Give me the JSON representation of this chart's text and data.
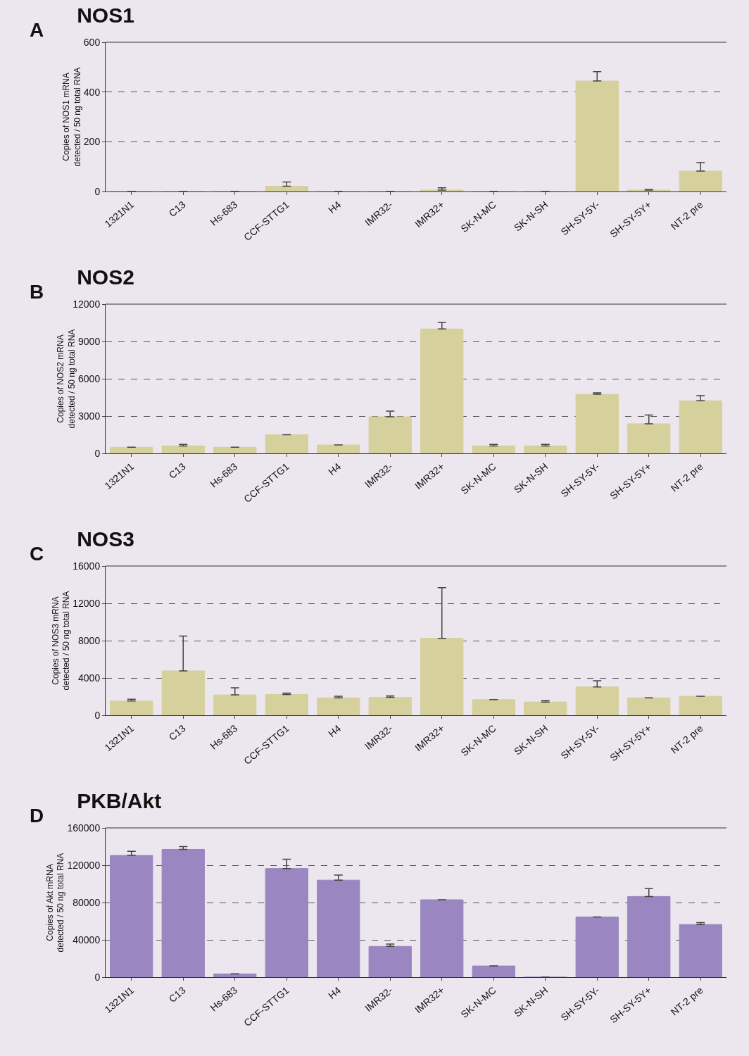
{
  "chart_data": [
    {
      "type": "bar",
      "title": "NOS1",
      "annotations": [
        "A"
      ],
      "ylabel": "Copies of NOS1 mRNA\ndetected / 50 ng total RNA",
      "categories": [
        "1321N1",
        "C13",
        "Hs-683",
        "CCF-STTG1",
        "H4",
        "IMR32-",
        "IMR32+",
        "SK-N-MC",
        "SK-N-SH",
        "SH-SY-5Y-",
        "SH-SY-5Y+",
        "NT-2 pre"
      ],
      "values": [
        0,
        0,
        0,
        21,
        0,
        0,
        6,
        0,
        0,
        444,
        6,
        82
      ],
      "errors": [
        null,
        null,
        null,
        [
          21,
          38
        ],
        null,
        null,
        [
          6,
          15
        ],
        null,
        null,
        [
          444,
          482
        ],
        [
          6,
          8
        ],
        [
          82,
          116
        ]
      ],
      "color": "#d6d09c",
      "ylim": [
        0,
        600
      ],
      "yticks": [
        0,
        200,
        400,
        600
      ],
      "grid": "y"
    },
    {
      "type": "bar",
      "title": "NOS2",
      "annotations": [
        "B"
      ],
      "ylabel": "Copies of NOS2 mRNA\ndetected / 50 ng total RNA",
      "categories": [
        "1321N1",
        "C13",
        "Hs-683",
        "CCF-STTG1",
        "H4",
        "IMR32-",
        "IMR32+",
        "SK-N-MC",
        "SK-N-SH",
        "SH-SY-5Y-",
        "SH-SY-5Y+",
        "NT-2 pre"
      ],
      "values": [
        490,
        600,
        490,
        1500,
        680,
        2940,
        10000,
        600,
        600,
        4750,
        2380,
        4230
      ],
      "errors": [
        null,
        [
          600,
          720
        ],
        null,
        null,
        null,
        [
          2940,
          3400
        ],
        [
          10000,
          10530
        ],
        [
          600,
          720
        ],
        [
          600,
          720
        ],
        [
          4750,
          4870
        ],
        [
          2380,
          3090
        ],
        [
          4230,
          4640
        ]
      ],
      "color": "#d6d09c",
      "ylim": [
        0,
        12000
      ],
      "yticks": [
        0,
        3000,
        6000,
        9000,
        12000
      ],
      "grid": "y"
    },
    {
      "type": "bar",
      "title": "NOS3",
      "annotations": [
        "C"
      ],
      "ylabel": "Copies of NOS3 mRNA\ndetected / 50 ng total RNA",
      "categories": [
        "1321N1",
        "C13",
        "Hs-683",
        "CCF-STTG1",
        "H4",
        "IMR32-",
        "IMR32+",
        "SK-N-MC",
        "SK-N-SH",
        "SH-SY-5Y-",
        "SH-SY-5Y+",
        "NT-2 pre"
      ],
      "values": [
        1520,
        4760,
        2180,
        2230,
        1870,
        1920,
        8250,
        1670,
        1420,
        3040,
        1870,
        2030
      ],
      "errors": [
        [
          1520,
          1720
        ],
        [
          4760,
          8500
        ],
        [
          2180,
          2940
        ],
        [
          2230,
          2380
        ],
        [
          1870,
          2030
        ],
        [
          1920,
          2080
        ],
        [
          8250,
          13670
        ],
        null,
        [
          1420,
          1570
        ],
        [
          3040,
          3700
        ],
        null,
        null
      ],
      "color": "#d6d09c",
      "ylim": [
        0,
        16000
      ],
      "yticks": [
        0,
        4000,
        8000,
        12000,
        16000
      ],
      "grid": "y"
    },
    {
      "type": "bar",
      "title": "PKB/Akt",
      "annotations": [
        "D"
      ],
      "ylabel": "Copies of Akt mRNA\ndetected / 50 ng total RNA",
      "categories": [
        "1321N1",
        "C13",
        "Hs-683",
        "CCF-STTG1",
        "H4",
        "IMR32-",
        "IMR32+",
        "SK-N-MC",
        "SK-N-SH",
        "SH-SY-5Y-",
        "SH-SY-5Y+",
        "NT-2 pre"
      ],
      "values": [
        130500,
        137000,
        3500,
        116500,
        104000,
        33000,
        83000,
        12000,
        0,
        64500,
        86500,
        56500
      ],
      "errors": [
        [
          130500,
          135000
        ],
        [
          137000,
          140000
        ],
        null,
        [
          116500,
          126500
        ],
        [
          104000,
          109500
        ],
        [
          33000,
          35500
        ],
        null,
        null,
        null,
        null,
        [
          86500,
          95000
        ],
        [
          56500,
          58500
        ]
      ],
      "color": "#9a86c0",
      "ylim": [
        0,
        160000
      ],
      "yticks": [
        0,
        40000,
        80000,
        120000,
        160000
      ],
      "grid": "y"
    }
  ]
}
